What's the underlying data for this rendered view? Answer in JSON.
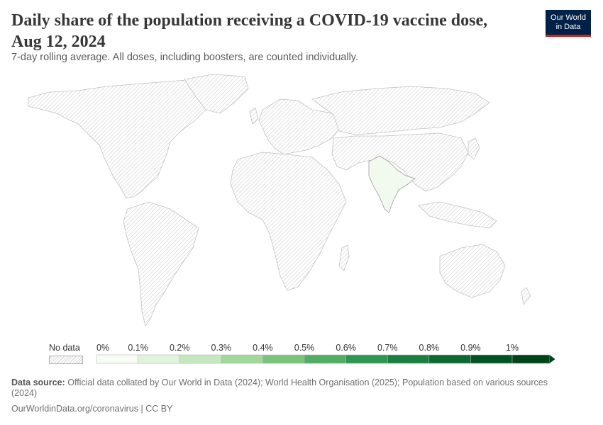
{
  "header": {
    "title": "Daily share of the population receiving a COVID-19 vaccine dose, Aug 12, 2024",
    "subtitle": "7-day rolling average. All doses, including boosters, are counted individually."
  },
  "logo": {
    "line1": "Our World",
    "line2": "in Data",
    "bg_color": "#002147",
    "accent_color": "#ce261e"
  },
  "map": {
    "regions": [
      {
        "name": "India",
        "value_pct": 0.01,
        "fill": "#f2faef"
      },
      {
        "name": "All other countries",
        "value_pct": null,
        "fill": "no-data-hatch"
      }
    ]
  },
  "legend": {
    "no_data_label": "No data",
    "tick_labels": [
      "0%",
      "0.1%",
      "0.2%",
      "0.3%",
      "0.4%",
      "0.5%",
      "0.6%",
      "0.7%",
      "0.8%",
      "0.9%",
      "1%"
    ],
    "bin_colors": [
      "#f7fcf5",
      "#e1f3dc",
      "#c4e8bd",
      "#a0d89a",
      "#78c47a",
      "#4fae63",
      "#2d964f",
      "#1a7f3f",
      "#0a6a32",
      "#005424",
      "#00441b"
    ]
  },
  "source": {
    "label": "Data source:",
    "text": "Official data collated by Our World in Data (2024); World Health Organisation (2025); Population based on various sources (2024)"
  },
  "footer": {
    "text": "OurWorldinData.org/coronavirus | CC BY"
  }
}
